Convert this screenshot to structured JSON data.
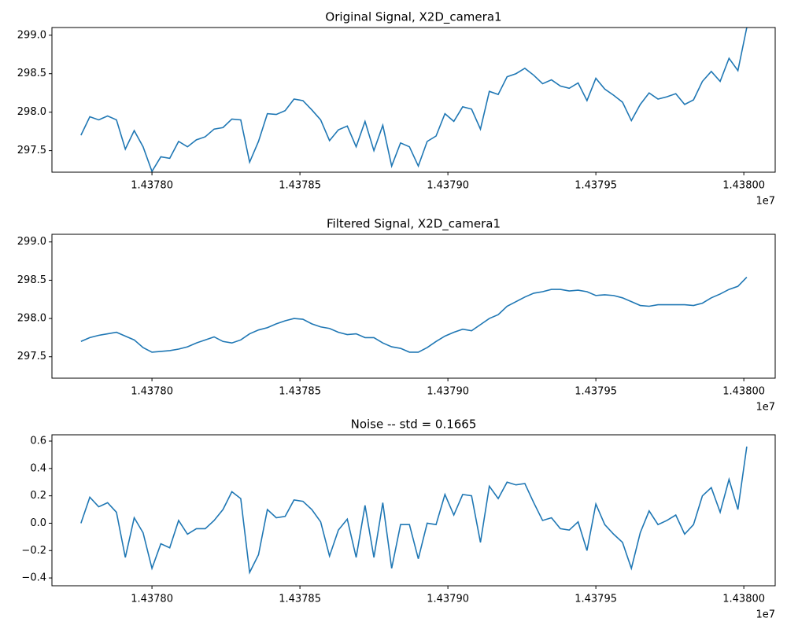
{
  "chart_data": [
    {
      "type": "line",
      "title": "Original Signal, X2D_camera1",
      "x_offset_label": "1e7",
      "x": [
        14377760,
        14377790,
        14377820,
        14377850,
        14377880,
        14377910,
        14377940,
        14377970,
        14378000,
        14378030,
        14378060,
        14378090,
        14378120,
        14378150,
        14378180,
        14378210,
        14378240,
        14378270,
        14378300,
        14378330,
        14378360,
        14378390,
        14378420,
        14378450,
        14378480,
        14378510,
        14378540,
        14378570,
        14378600,
        14378630,
        14378660,
        14378690,
        14378720,
        14378750,
        14378780,
        14378810,
        14378840,
        14378870,
        14378900,
        14378930,
        14378960,
        14378990,
        14379020,
        14379050,
        14379080,
        14379110,
        14379140,
        14379170,
        14379200,
        14379230,
        14379260,
        14379290,
        14379320,
        14379350,
        14379380,
        14379410,
        14379440,
        14379470,
        14379500,
        14379530,
        14379560,
        14379590,
        14379620,
        14379650,
        14379680,
        14379710,
        14379740,
        14379770,
        14379800,
        14379830,
        14379860,
        14379890,
        14379920,
        14379950,
        14379980,
        14380010
      ],
      "color": "#1f77b4",
      "values": [
        297.7,
        297.94,
        297.9,
        297.95,
        297.9,
        297.52,
        297.76,
        297.55,
        297.23,
        297.42,
        297.4,
        297.62,
        297.55,
        297.64,
        297.68,
        297.78,
        297.8,
        297.91,
        297.9,
        297.35,
        297.62,
        297.98,
        297.97,
        298.02,
        298.17,
        298.15,
        298.03,
        297.9,
        297.63,
        297.77,
        297.82,
        297.55,
        297.88,
        297.5,
        297.83,
        297.3,
        297.6,
        297.55,
        297.3,
        297.62,
        297.69,
        297.98,
        297.88,
        298.07,
        298.04,
        297.78,
        298.27,
        298.23,
        298.46,
        298.5,
        298.57,
        298.48,
        298.37,
        298.42,
        298.34,
        298.31,
        298.38,
        298.15,
        298.44,
        298.3,
        298.22,
        298.13,
        297.89,
        298.1,
        298.25,
        298.17,
        298.2,
        298.24,
        298.1,
        298.16,
        298.4,
        298.53,
        298.4,
        298.7,
        298.54,
        299.1
      ],
      "xlim": [
        14377662,
        14380106
      ],
      "xticks": [
        {
          "value": 14378000,
          "label": "1.43780"
        },
        {
          "value": 14378500,
          "label": "1.43785"
        },
        {
          "value": 14379000,
          "label": "1.43790"
        },
        {
          "value": 14379500,
          "label": "1.43795"
        },
        {
          "value": 14380000,
          "label": "1.43800"
        }
      ],
      "ylim": [
        297.22,
        299.1
      ],
      "yticks": [
        297.5,
        {
          "value": 298,
          "label": "298.0"
        },
        298.5,
        {
          "value": 299,
          "label": "299.0"
        }
      ]
    },
    {
      "type": "line",
      "title": "Filtered Signal, X2D_camera1",
      "x_offset_label": "1e7",
      "x": [
        14377760,
        14377790,
        14377820,
        14377850,
        14377880,
        14377910,
        14377940,
        14377970,
        14378000,
        14378030,
        14378060,
        14378090,
        14378120,
        14378150,
        14378180,
        14378210,
        14378240,
        14378270,
        14378300,
        14378330,
        14378360,
        14378390,
        14378420,
        14378450,
        14378480,
        14378510,
        14378540,
        14378570,
        14378600,
        14378630,
        14378660,
        14378690,
        14378720,
        14378750,
        14378780,
        14378810,
        14378840,
        14378870,
        14378900,
        14378930,
        14378960,
        14378990,
        14379020,
        14379050,
        14379080,
        14379110,
        14379140,
        14379170,
        14379200,
        14379230,
        14379260,
        14379290,
        14379320,
        14379350,
        14379380,
        14379410,
        14379440,
        14379470,
        14379500,
        14379530,
        14379560,
        14379590,
        14379620,
        14379650,
        14379680,
        14379710,
        14379740,
        14379770,
        14379800,
        14379830,
        14379860,
        14379890,
        14379920,
        14379950,
        14379980,
        14380010
      ],
      "color": "#1f77b4",
      "values": [
        297.7,
        297.75,
        297.78,
        297.8,
        297.82,
        297.77,
        297.72,
        297.62,
        297.56,
        297.57,
        297.58,
        297.6,
        297.63,
        297.68,
        297.72,
        297.76,
        297.7,
        297.68,
        297.72,
        297.8,
        297.85,
        297.88,
        297.93,
        297.97,
        298.0,
        297.99,
        297.93,
        297.89,
        297.87,
        297.82,
        297.79,
        297.8,
        297.75,
        297.75,
        297.68,
        297.63,
        297.61,
        297.56,
        297.56,
        297.62,
        297.7,
        297.77,
        297.82,
        297.86,
        297.84,
        297.92,
        298.0,
        298.05,
        298.16,
        298.22,
        298.28,
        298.33,
        298.35,
        298.38,
        298.38,
        298.36,
        298.37,
        298.35,
        298.3,
        298.31,
        298.3,
        298.27,
        298.22,
        298.17,
        298.16,
        298.18,
        298.18,
        298.18,
        298.18,
        298.17,
        298.2,
        298.27,
        298.32,
        298.38,
        298.42,
        298.54
      ],
      "xlim": [
        14377662,
        14380106
      ],
      "xticks": [
        {
          "value": 14378000,
          "label": "1.43780"
        },
        {
          "value": 14378500,
          "label": "1.43785"
        },
        {
          "value": 14379000,
          "label": "1.43790"
        },
        {
          "value": 14379500,
          "label": "1.43795"
        },
        {
          "value": 14380000,
          "label": "1.43800"
        }
      ],
      "ylim": [
        297.22,
        299.1
      ],
      "yticks": [
        297.5,
        {
          "value": 298,
          "label": "298.0"
        },
        298.5,
        {
          "value": 299,
          "label": "299.0"
        }
      ]
    },
    {
      "type": "line",
      "title": "Noise -- std = 0.1665",
      "x_offset_label": "1e7",
      "x": [
        14377760,
        14377790,
        14377820,
        14377850,
        14377880,
        14377910,
        14377940,
        14377970,
        14378000,
        14378030,
        14378060,
        14378090,
        14378120,
        14378150,
        14378180,
        14378210,
        14378240,
        14378270,
        14378300,
        14378330,
        14378360,
        14378390,
        14378420,
        14378450,
        14378480,
        14378510,
        14378540,
        14378570,
        14378600,
        14378630,
        14378660,
        14378690,
        14378720,
        14378750,
        14378780,
        14378810,
        14378840,
        14378870,
        14378900,
        14378930,
        14378960,
        14378990,
        14379020,
        14379050,
        14379080,
        14379110,
        14379140,
        14379170,
        14379200,
        14379230,
        14379260,
        14379290,
        14379320,
        14379350,
        14379380,
        14379410,
        14379440,
        14379470,
        14379500,
        14379530,
        14379560,
        14379590,
        14379620,
        14379650,
        14379680,
        14379710,
        14379740,
        14379770,
        14379800,
        14379830,
        14379860,
        14379890,
        14379920,
        14379950,
        14379980,
        14380010
      ],
      "color": "#1f77b4",
      "values": [
        0.0,
        0.19,
        0.12,
        0.15,
        0.08,
        -0.25,
        0.04,
        -0.07,
        -0.33,
        -0.15,
        -0.18,
        0.02,
        -0.08,
        -0.04,
        -0.04,
        0.02,
        0.1,
        0.23,
        0.18,
        -0.36,
        -0.23,
        0.1,
        0.04,
        0.05,
        0.17,
        0.16,
        0.1,
        0.01,
        -0.24,
        -0.05,
        0.03,
        -0.25,
        0.13,
        -0.25,
        0.15,
        -0.33,
        -0.01,
        -0.01,
        -0.26,
        0.0,
        -0.01,
        0.21,
        0.06,
        0.21,
        0.2,
        -0.14,
        0.27,
        0.18,
        0.3,
        0.28,
        0.29,
        0.15,
        0.02,
        0.04,
        -0.04,
        -0.05,
        0.01,
        -0.2,
        0.14,
        -0.01,
        -0.08,
        -0.14,
        -0.33,
        -0.07,
        0.09,
        -0.01,
        0.02,
        0.06,
        -0.08,
        -0.01,
        0.2,
        0.26,
        0.08,
        0.32,
        0.1,
        0.56
      ],
      "xlim": [
        14377662,
        14380106
      ],
      "xticks": [
        {
          "value": 14378000,
          "label": "1.43780"
        },
        {
          "value": 14378500,
          "label": "1.43785"
        },
        {
          "value": 14379000,
          "label": "1.43790"
        },
        {
          "value": 14379500,
          "label": "1.43795"
        },
        {
          "value": 14380000,
          "label": "1.43800"
        }
      ],
      "ylim": [
        -0.457,
        0.646
      ],
      "yticks": [
        {
          "value": -0.4,
          "label": "−0.4"
        },
        {
          "value": -0.2,
          "label": "−0.2"
        },
        {
          "value": 0,
          "label": "0.0"
        },
        0.2,
        0.4,
        0.6
      ]
    }
  ]
}
